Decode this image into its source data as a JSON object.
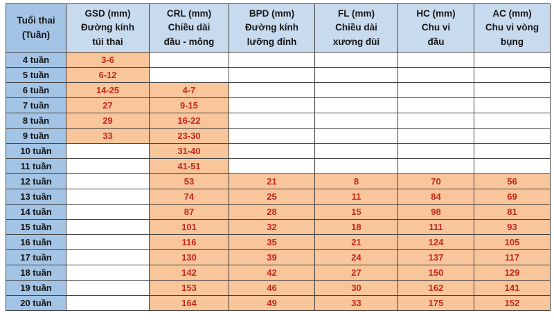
{
  "chart_data": {
    "type": "table",
    "columns": [
      "Tuổi thai\n(Tuần)",
      "GSD (mm)\nĐường kính\ntúi thai",
      "CRL (mm)\nChiều dài\nđầu - mông",
      "BPD (mm)\nĐường kính\nlưỡng đỉnh",
      "FL (mm)\nChiều dài\nxương đùi",
      "HC (mm)\nChu vi\nđầu",
      "AC (mm)\nChu vi vòng\nbụng"
    ],
    "rows": [
      [
        "4 tuần",
        "3-6",
        "",
        "",
        "",
        "",
        ""
      ],
      [
        "5 tuần",
        "6-12",
        "",
        "",
        "",
        "",
        ""
      ],
      [
        "6 tuần",
        "14-25",
        "4-7",
        "",
        "",
        "",
        ""
      ],
      [
        "7 tuần",
        "27",
        "9-15",
        "",
        "",
        "",
        ""
      ],
      [
        "8 tuần",
        "29",
        "16-22",
        "",
        "",
        "",
        ""
      ],
      [
        "9 tuần",
        "33",
        "23-30",
        "",
        "",
        "",
        ""
      ],
      [
        "10 tuần",
        "",
        "31-40",
        "",
        "",
        "",
        ""
      ],
      [
        "11 tuần",
        "",
        "41-51",
        "",
        "",
        "",
        ""
      ],
      [
        "12 tuần",
        "",
        "53",
        "21",
        "8",
        "70",
        "56"
      ],
      [
        "13 tuần",
        "",
        "74",
        "25",
        "11",
        "84",
        "69"
      ],
      [
        "14 tuần",
        "",
        "87",
        "28",
        "15",
        "98",
        "81"
      ],
      [
        "15 tuần",
        "",
        "101",
        "32",
        "18",
        "111",
        "93"
      ],
      [
        "16 tuần",
        "",
        "116",
        "35",
        "21",
        "124",
        "105"
      ],
      [
        "17 tuần",
        "",
        "130",
        "39",
        "24",
        "137",
        "117"
      ],
      [
        "18 tuần",
        "",
        "142",
        "42",
        "27",
        "150",
        "129"
      ],
      [
        "19 tuần",
        "",
        "153",
        "46",
        "30",
        "162",
        "141"
      ],
      [
        "20 tuần",
        "",
        "164",
        "49",
        "33",
        "175",
        "152"
      ]
    ],
    "layout": {
      "grid": true,
      "filled_cell_rule": "cell shaded orange only when it contains a value"
    }
  },
  "colors": {
    "header_bg": "#c8daee",
    "age_column_bg": "#a3c4e5",
    "filled_cell_bg": "#f9c59b",
    "empty_cell_bg": "#ffffff",
    "value_text": "#c2291d",
    "label_text": "#161616",
    "border": "#3f3f3f",
    "page_bg": "#ffffff"
  }
}
